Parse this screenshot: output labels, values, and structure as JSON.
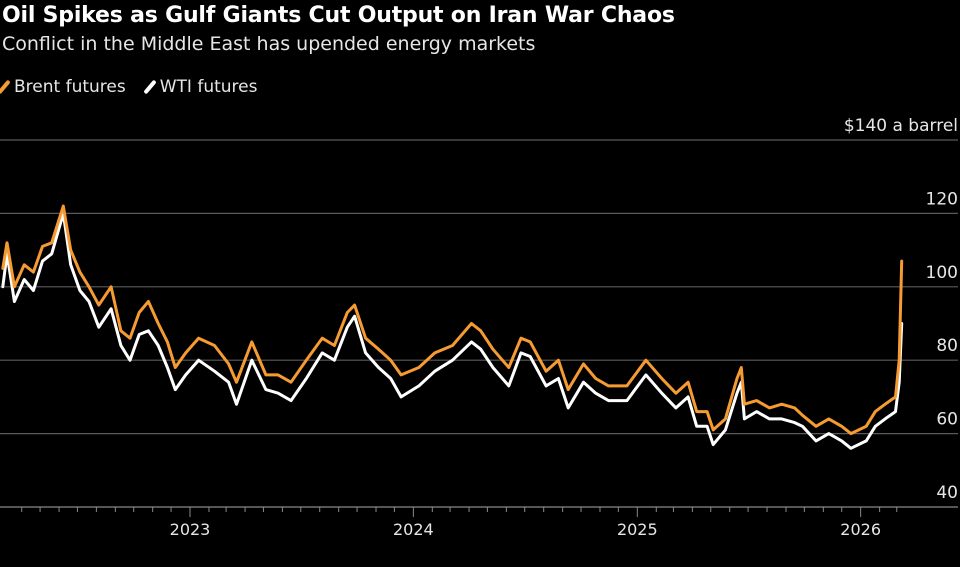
{
  "chart_data": {
    "type": "line",
    "title": "Oil Spikes as Gulf Giants Cut Output on Iran War Chaos",
    "subtitle": "Conflict in the Middle East has upended energy markets",
    "ylabel": "",
    "y_unit_label": "$140 a barrel",
    "ylim": [
      40,
      140
    ],
    "yticks": [
      40,
      60,
      80,
      100,
      120,
      140
    ],
    "ytick_labels": [
      "40",
      "60",
      "80",
      "100",
      "120",
      "$140 a barrel"
    ],
    "xticks": [
      "2023",
      "2024",
      "2025",
      "2026"
    ],
    "grid": true,
    "legend_position": "top-left",
    "x": [
      "2022-03-01",
      "2022-03-08",
      "2022-03-20",
      "2022-04-05",
      "2022-04-20",
      "2022-05-05",
      "2022-05-20",
      "2022-06-08",
      "2022-06-20",
      "2022-07-05",
      "2022-07-20",
      "2022-08-05",
      "2022-08-25",
      "2022-09-10",
      "2022-09-25",
      "2022-10-10",
      "2022-10-25",
      "2022-11-10",
      "2022-11-25",
      "2022-12-08",
      "2022-12-25",
      "2023-01-15",
      "2023-02-10",
      "2023-03-05",
      "2023-03-18",
      "2023-04-12",
      "2023-05-05",
      "2023-05-25",
      "2023-06-15",
      "2023-07-10",
      "2023-08-05",
      "2023-08-25",
      "2023-09-15",
      "2023-09-27",
      "2023-10-15",
      "2023-11-05",
      "2023-11-25",
      "2023-12-12",
      "2024-01-10",
      "2024-02-05",
      "2024-03-05",
      "2024-04-05",
      "2024-04-20",
      "2024-05-10",
      "2024-06-05",
      "2024-06-25",
      "2024-07-10",
      "2024-08-05",
      "2024-08-25",
      "2024-09-10",
      "2024-10-05",
      "2024-10-25",
      "2024-11-15",
      "2024-12-15",
      "2025-01-15",
      "2025-02-10",
      "2025-03-05",
      "2025-03-25",
      "2025-04-08",
      "2025-04-25",
      "2025-05-05",
      "2025-05-25",
      "2025-06-13",
      "2025-06-20",
      "2025-06-25",
      "2025-07-15",
      "2025-08-05",
      "2025-08-25",
      "2025-09-15",
      "2025-09-28",
      "2025-10-20",
      "2025-11-10",
      "2025-12-01",
      "2025-12-16",
      "2026-01-10",
      "2026-01-25",
      "2026-02-10",
      "2026-02-27",
      "2026-03-05",
      "2026-03-09"
    ],
    "series": [
      {
        "name": "Brent futures",
        "color": "#f59b31",
        "values": [
          105,
          112,
          100,
          106,
          104,
          111,
          112,
          122,
          110,
          104,
          100,
          95,
          100,
          88,
          86,
          93,
          96,
          90,
          85,
          78,
          82,
          86,
          84,
          79,
          74,
          85,
          76,
          76,
          74,
          80,
          86,
          84,
          93,
          95,
          86,
          83,
          80,
          76,
          78,
          82,
          84,
          90,
          88,
          83,
          78,
          86,
          85,
          77,
          80,
          72,
          79,
          75,
          73,
          73,
          80,
          75,
          71,
          74,
          66,
          66,
          61,
          64,
          75,
          78,
          68,
          69,
          67,
          68,
          67,
          65,
          62,
          64,
          62,
          60,
          62,
          66,
          68,
          70,
          80,
          107
        ]
      },
      {
        "name": "WTI futures",
        "color": "#ffffff",
        "values": [
          100,
          109,
          96,
          102,
          99,
          107,
          109,
          120,
          106,
          99,
          96,
          89,
          94,
          84,
          80,
          87,
          88,
          84,
          78,
          72,
          76,
          80,
          77,
          74,
          68,
          80,
          72,
          71,
          69,
          75,
          82,
          80,
          89,
          92,
          82,
          78,
          75,
          70,
          73,
          77,
          80,
          85,
          83,
          78,
          73,
          82,
          81,
          73,
          75,
          67,
          74,
          71,
          69,
          69,
          76,
          71,
          67,
          70,
          62,
          62,
          57,
          61,
          71,
          74,
          64,
          66,
          64,
          64,
          63,
          62,
          58,
          60,
          58,
          56,
          58,
          62,
          64,
          66,
          74,
          90
        ]
      }
    ]
  }
}
